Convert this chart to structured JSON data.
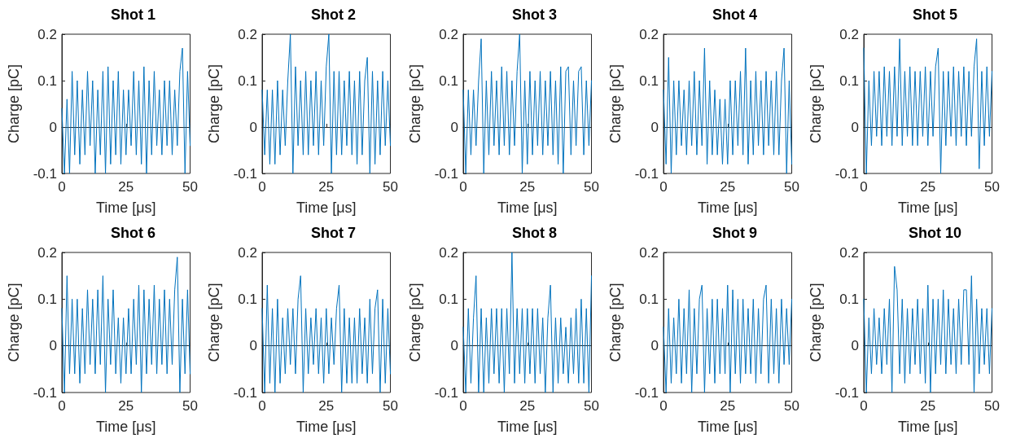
{
  "chart_data": [
    {
      "type": "line",
      "title": "Shot 1",
      "xlabel": "Time [μs]",
      "ylabel": "Charge [pC]",
      "color": "#0072bd",
      "xlim": [
        0,
        50
      ],
      "ylim": [
        -0.1,
        0.2
      ],
      "xticks": [
        0,
        25,
        50
      ],
      "yticks": [
        -0.1,
        0,
        0.1,
        0.2
      ],
      "x": [
        0,
        1,
        2,
        3,
        4,
        5,
        6,
        7,
        8,
        9,
        10,
        11,
        12,
        13,
        14,
        15,
        16,
        17,
        18,
        19,
        20,
        21,
        22,
        23,
        24,
        25,
        26,
        27,
        28,
        29,
        30,
        31,
        32,
        33,
        34,
        35,
        36,
        37,
        38,
        39,
        40,
        41,
        42,
        43,
        44,
        45,
        46,
        47,
        48,
        49,
        50
      ],
      "values": [
        0.04,
        -0.1,
        0.06,
        -0.1,
        0.12,
        -0.06,
        0.1,
        -0.08,
        0.08,
        -0.06,
        0.12,
        -0.04,
        0.1,
        -0.1,
        0.08,
        -0.06,
        0.12,
        -0.1,
        0.13,
        -0.08,
        0.1,
        -0.06,
        0.12,
        -0.08,
        0.08,
        -0.06,
        0.08,
        -0.04,
        0.12,
        -0.06,
        0.1,
        -0.08,
        0.13,
        -0.1,
        0.1,
        -0.06,
        0.12,
        -0.04,
        0.08,
        -0.06,
        0.1,
        -0.04,
        0.1,
        -0.06,
        0.08,
        -0.04,
        0.12,
        0.17,
        -0.1,
        0.12,
        -0.04
      ]
    },
    {
      "type": "line",
      "title": "Shot 2",
      "xlabel": "Time [μs]",
      "ylabel": "Charge [pC]",
      "color": "#0072bd",
      "xlim": [
        0,
        50
      ],
      "ylim": [
        -0.1,
        0.2
      ],
      "xticks": [
        0,
        25,
        50
      ],
      "yticks": [
        -0.1,
        0,
        0.1,
        0.2
      ],
      "x": [
        0,
        1,
        2,
        3,
        4,
        5,
        6,
        7,
        8,
        9,
        10,
        11,
        12,
        13,
        14,
        15,
        16,
        17,
        18,
        19,
        20,
        21,
        22,
        23,
        24,
        25,
        26,
        27,
        28,
        29,
        30,
        31,
        32,
        33,
        34,
        35,
        36,
        37,
        38,
        39,
        40,
        41,
        42,
        43,
        44,
        45,
        46,
        47,
        48,
        49,
        50
      ],
      "values": [
        0.08,
        -0.06,
        0.08,
        -0.08,
        0.08,
        -0.08,
        0.1,
        -0.06,
        0.08,
        -0.04,
        0.1,
        0.2,
        -0.1,
        0.13,
        -0.04,
        0.1,
        -0.06,
        0.12,
        -0.06,
        0.1,
        -0.04,
        0.12,
        -0.06,
        0.1,
        -0.04,
        0.13,
        0.2,
        -0.1,
        0.12,
        -0.06,
        0.12,
        -0.06,
        0.1,
        -0.04,
        0.12,
        -0.06,
        0.1,
        -0.08,
        0.12,
        -0.06,
        0.1,
        0.15,
        -0.1,
        0.12,
        -0.08,
        0.1,
        -0.06,
        0.12,
        -0.04,
        0.1,
        -0.04
      ]
    },
    {
      "type": "line",
      "title": "Shot 3",
      "xlabel": "Time [μs]",
      "ylabel": "Charge [pC]",
      "color": "#0072bd",
      "xlim": [
        0,
        50
      ],
      "ylim": [
        -0.1,
        0.2
      ],
      "xticks": [
        0,
        25,
        50
      ],
      "yticks": [
        -0.1,
        0,
        0.1,
        0.2
      ],
      "x": [
        0,
        1,
        2,
        3,
        4,
        5,
        6,
        7,
        8,
        9,
        10,
        11,
        12,
        13,
        14,
        15,
        16,
        17,
        18,
        19,
        20,
        21,
        22,
        23,
        24,
        25,
        26,
        27,
        28,
        29,
        30,
        31,
        32,
        33,
        34,
        35,
        36,
        37,
        38,
        39,
        40,
        41,
        42,
        43,
        44,
        45,
        46,
        47,
        48,
        49,
        50
      ],
      "values": [
        0.08,
        -0.1,
        0.08,
        -0.06,
        0.08,
        -0.04,
        0.1,
        0.19,
        -0.1,
        0.1,
        -0.06,
        0.12,
        -0.04,
        0.1,
        -0.06,
        0.13,
        -0.04,
        0.12,
        -0.06,
        0.1,
        -0.04,
        0.12,
        0.2,
        -0.1,
        0.1,
        -0.08,
        0.12,
        -0.06,
        0.1,
        -0.04,
        0.12,
        -0.06,
        0.1,
        -0.04,
        0.12,
        -0.06,
        0.1,
        -0.08,
        0.13,
        -0.1,
        0.12,
        0.13,
        -0.06,
        0.1,
        -0.04,
        0.12,
        0.13,
        -0.06,
        0.1,
        -0.04,
        0.1
      ]
    },
    {
      "type": "line",
      "title": "Shot 4",
      "xlabel": "Time [μs]",
      "ylabel": "Charge [pC]",
      "color": "#0072bd",
      "xlim": [
        0,
        50
      ],
      "ylim": [
        -0.1,
        0.2
      ],
      "xticks": [
        0,
        25,
        50
      ],
      "yticks": [
        -0.1,
        0,
        0.1,
        0.2
      ],
      "x": [
        0,
        1,
        2,
        3,
        4,
        5,
        6,
        7,
        8,
        9,
        10,
        11,
        12,
        13,
        14,
        15,
        16,
        17,
        18,
        19,
        20,
        21,
        22,
        23,
        24,
        25,
        26,
        27,
        28,
        29,
        30,
        31,
        32,
        33,
        34,
        35,
        36,
        37,
        38,
        39,
        40,
        41,
        42,
        43,
        44,
        45,
        46,
        47,
        48,
        49,
        50
      ],
      "values": [
        0.08,
        -0.08,
        0.15,
        -0.1,
        0.1,
        -0.06,
        0.1,
        -0.04,
        0.08,
        -0.06,
        0.1,
        -0.04,
        0.12,
        -0.06,
        0.1,
        -0.04,
        0.17,
        -0.08,
        0.1,
        -0.06,
        0.08,
        -0.06,
        0.06,
        -0.08,
        0.06,
        -0.08,
        0.1,
        -0.06,
        0.1,
        -0.04,
        0.12,
        -0.06,
        0.17,
        -0.08,
        0.1,
        -0.06,
        0.12,
        -0.04,
        0.1,
        -0.06,
        0.12,
        -0.04,
        0.1,
        -0.06,
        0.12,
        -0.06,
        0.1,
        0.17,
        -0.1,
        0.1,
        -0.08
      ]
    },
    {
      "type": "line",
      "title": "Shot 5",
      "xlabel": "Time [μs]",
      "ylabel": "Charge [pC]",
      "color": "#0072bd",
      "xlim": [
        0,
        50
      ],
      "ylim": [
        -0.1,
        0.2
      ],
      "xticks": [
        0,
        25,
        50
      ],
      "yticks": [
        -0.1,
        0,
        0.1,
        0.2
      ],
      "x": [
        0,
        1,
        2,
        3,
        4,
        5,
        6,
        7,
        8,
        9,
        10,
        11,
        12,
        13,
        14,
        15,
        16,
        17,
        18,
        19,
        20,
        21,
        22,
        23,
        24,
        25,
        26,
        27,
        28,
        29,
        30,
        31,
        32,
        33,
        34,
        35,
        36,
        37,
        38,
        39,
        40,
        41,
        42,
        43,
        44,
        45,
        46,
        47,
        48,
        49,
        50
      ],
      "values": [
        0.17,
        -0.1,
        0.1,
        -0.04,
        0.12,
        -0.02,
        0.12,
        -0.04,
        0.13,
        -0.02,
        0.12,
        -0.04,
        0.13,
        -0.02,
        0.19,
        -0.04,
        0.12,
        -0.02,
        0.13,
        -0.04,
        0.12,
        -0.04,
        0.12,
        -0.02,
        0.13,
        -0.04,
        0.12,
        -0.02,
        0.13,
        0.17,
        -0.1,
        0.12,
        -0.04,
        0.12,
        -0.02,
        0.13,
        -0.04,
        0.12,
        -0.02,
        0.13,
        -0.04,
        0.12,
        -0.02,
        0.13,
        0.19,
        -0.09,
        0.12,
        -0.04,
        0.13,
        -0.02,
        0.12
      ]
    },
    {
      "type": "line",
      "title": "Shot 6",
      "xlabel": "Time [μs]",
      "ylabel": "Charge [pC]",
      "color": "#0072bd",
      "xlim": [
        0,
        50
      ],
      "ylim": [
        -0.1,
        0.2
      ],
      "xticks": [
        0,
        25,
        50
      ],
      "yticks": [
        -0.1,
        0,
        0.1,
        0.2
      ],
      "x": [
        0,
        1,
        2,
        3,
        4,
        5,
        6,
        7,
        8,
        9,
        10,
        11,
        12,
        13,
        14,
        15,
        16,
        17,
        18,
        19,
        20,
        21,
        22,
        23,
        24,
        25,
        26,
        27,
        28,
        29,
        30,
        31,
        32,
        33,
        34,
        35,
        36,
        37,
        38,
        39,
        40,
        41,
        42,
        43,
        44,
        45,
        46,
        47,
        48,
        49,
        50
      ],
      "values": [
        0.08,
        -0.1,
        0.15,
        -0.06,
        0.1,
        -0.06,
        0.1,
        -0.08,
        0.08,
        -0.06,
        0.12,
        -0.04,
        0.1,
        -0.06,
        0.12,
        -0.04,
        0.15,
        -0.1,
        0.1,
        -0.04,
        0.12,
        -0.06,
        0.06,
        -0.08,
        0.06,
        -0.06,
        0.08,
        -0.06,
        0.1,
        -0.04,
        0.13,
        -0.1,
        0.12,
        -0.06,
        0.1,
        -0.04,
        0.13,
        -0.06,
        0.1,
        -0.04,
        0.12,
        -0.06,
        0.1,
        -0.04,
        0.12,
        0.19,
        -0.1,
        0.1,
        -0.06,
        0.12,
        -0.06
      ]
    },
    {
      "type": "line",
      "title": "Shot 7",
      "xlabel": "Time [μs]",
      "ylabel": "Charge [pC]",
      "color": "#0072bd",
      "xlim": [
        0,
        50
      ],
      "ylim": [
        -0.1,
        0.2
      ],
      "xticks": [
        0,
        25,
        50
      ],
      "yticks": [
        -0.1,
        0,
        0.1,
        0.2
      ],
      "x": [
        0,
        1,
        2,
        3,
        4,
        5,
        6,
        7,
        8,
        9,
        10,
        11,
        12,
        13,
        14,
        15,
        16,
        17,
        18,
        19,
        20,
        21,
        22,
        23,
        24,
        25,
        26,
        27,
        28,
        29,
        30,
        31,
        32,
        33,
        34,
        35,
        36,
        37,
        38,
        39,
        40,
        41,
        42,
        43,
        44,
        45,
        46,
        47,
        48,
        49,
        50
      ],
      "values": [
        0.08,
        -0.1,
        0.13,
        -0.08,
        0.08,
        -0.1,
        0.1,
        -0.08,
        0.06,
        -0.06,
        0.08,
        -0.04,
        0.08,
        -0.06,
        0.1,
        0.15,
        -0.1,
        0.08,
        -0.06,
        0.06,
        -0.04,
        0.08,
        -0.06,
        0.06,
        -0.08,
        0.08,
        -0.06,
        0.06,
        -0.04,
        0.08,
        0.13,
        -0.1,
        0.08,
        -0.08,
        0.06,
        -0.08,
        0.06,
        -0.08,
        0.08,
        -0.06,
        0.06,
        -0.08,
        0.1,
        -0.06,
        0.08,
        0.12,
        -0.1,
        0.1,
        -0.08,
        0.08,
        -0.06
      ]
    },
    {
      "type": "line",
      "title": "Shot 8",
      "xlabel": "Time [μs]",
      "ylabel": "Charge [pC]",
      "color": "#0072bd",
      "xlim": [
        0,
        50
      ],
      "ylim": [
        -0.1,
        0.2
      ],
      "xticks": [
        0,
        25,
        50
      ],
      "yticks": [
        -0.1,
        0,
        0.1,
        0.2
      ],
      "x": [
        0,
        1,
        2,
        3,
        4,
        5,
        6,
        7,
        8,
        9,
        10,
        11,
        12,
        13,
        14,
        15,
        16,
        17,
        18,
        19,
        20,
        21,
        22,
        23,
        24,
        25,
        26,
        27,
        28,
        29,
        30,
        31,
        32,
        33,
        34,
        35,
        36,
        37,
        38,
        39,
        40,
        41,
        42,
        43,
        44,
        45,
        46,
        47,
        48,
        49,
        50
      ],
      "values": [
        0.04,
        -0.1,
        0.08,
        -0.08,
        0.06,
        0.15,
        -0.1,
        0.08,
        -0.1,
        0.06,
        -0.08,
        0.08,
        -0.06,
        0.08,
        -0.08,
        0.08,
        -0.1,
        0.08,
        -0.06,
        0.2,
        -0.08,
        0.08,
        -0.06,
        0.08,
        -0.08,
        0.08,
        -0.06,
        0.08,
        -0.08,
        0.08,
        -0.06,
        0.06,
        -0.1,
        0.06,
        0.13,
        -0.1,
        0.06,
        -0.08,
        0.06,
        -0.06,
        0.04,
        -0.08,
        0.06,
        -0.06,
        0.08,
        -0.08,
        0.1,
        -0.08,
        0.08,
        -0.1,
        0.15
      ]
    },
    {
      "type": "line",
      "title": "Shot 9",
      "xlabel": "Time [μs]",
      "ylabel": "Charge [pC]",
      "color": "#0072bd",
      "xlim": [
        0,
        50
      ],
      "ylim": [
        -0.1,
        0.2
      ],
      "xticks": [
        0,
        25,
        50
      ],
      "yticks": [
        -0.1,
        0,
        0.1,
        0.2
      ],
      "x": [
        0,
        1,
        2,
        3,
        4,
        5,
        6,
        7,
        8,
        9,
        10,
        11,
        12,
        13,
        14,
        15,
        16,
        17,
        18,
        19,
        20,
        21,
        22,
        23,
        24,
        25,
        26,
        27,
        28,
        29,
        30,
        31,
        32,
        33,
        34,
        35,
        36,
        37,
        38,
        39,
        40,
        41,
        42,
        43,
        44,
        45,
        46,
        47,
        48,
        49,
        50
      ],
      "values": [
        0.04,
        -0.1,
        0.08,
        -0.08,
        0.06,
        -0.06,
        0.1,
        -0.08,
        0.08,
        -0.06,
        0.12,
        -0.1,
        0.08,
        -0.06,
        0.1,
        0.13,
        -0.1,
        0.08,
        -0.06,
        0.1,
        -0.08,
        0.1,
        -0.06,
        0.08,
        -0.06,
        0.13,
        -0.1,
        0.12,
        -0.06,
        0.1,
        -0.08,
        0.1,
        -0.06,
        0.08,
        -0.06,
        0.1,
        -0.08,
        0.08,
        -0.06,
        0.1,
        0.13,
        -0.08,
        0.1,
        -0.06,
        0.08,
        -0.08,
        0.1,
        -0.04,
        0.08,
        -0.04,
        0.1
      ]
    },
    {
      "type": "line",
      "title": "Shot 10",
      "xlabel": "Time [μs]",
      "ylabel": "Charge [pC]",
      "color": "#0072bd",
      "xlim": [
        0,
        50
      ],
      "ylim": [
        -0.1,
        0.2
      ],
      "xticks": [
        0,
        25,
        50
      ],
      "yticks": [
        -0.1,
        0,
        0.1,
        0.2
      ],
      "x": [
        0,
        1,
        2,
        3,
        4,
        5,
        6,
        7,
        8,
        9,
        10,
        11,
        12,
        13,
        14,
        15,
        16,
        17,
        18,
        19,
        20,
        21,
        22,
        23,
        24,
        25,
        26,
        27,
        28,
        29,
        30,
        31,
        32,
        33,
        34,
        35,
        36,
        37,
        38,
        39,
        40,
        41,
        42,
        43,
        44,
        45,
        46,
        47,
        48,
        49,
        50
      ],
      "values": [
        0.1,
        -0.1,
        0.06,
        -0.06,
        0.08,
        -0.04,
        0.06,
        -0.06,
        0.08,
        -0.04,
        0.1,
        -0.1,
        0.17,
        0.12,
        -0.06,
        0.1,
        -0.08,
        0.08,
        -0.06,
        0.08,
        -0.04,
        0.1,
        -0.06,
        0.08,
        -0.08,
        0.13,
        -0.1,
        0.1,
        -0.06,
        0.1,
        -0.04,
        0.12,
        -0.06,
        0.1,
        -0.04,
        0.08,
        -0.06,
        0.1,
        -0.04,
        0.12,
        0.12,
        -0.04,
        0.15,
        -0.1,
        0.1,
        -0.06,
        0.08,
        -0.04,
        0.08,
        -0.06,
        0.08
      ]
    }
  ]
}
